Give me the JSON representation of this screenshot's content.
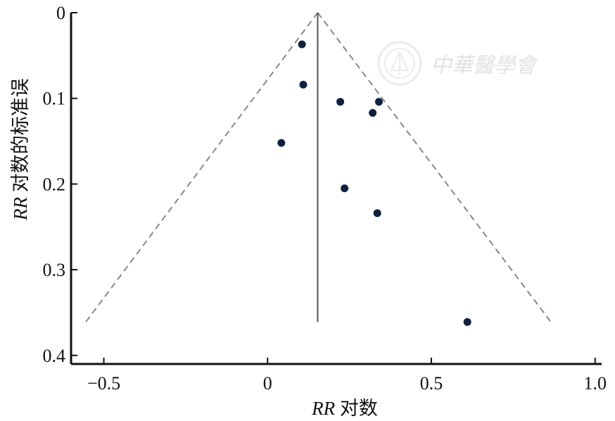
{
  "chart_data": {
    "type": "scatter",
    "chart_kind": "funnel plot",
    "xlabel": {
      "italic": "RR",
      "rest": " 对数"
    },
    "ylabel": {
      "italic": "RR",
      "rest": " 对数的标准误"
    },
    "xlim": [
      -0.6,
      1.02
    ],
    "ylim": [
      0.41,
      0.0
    ],
    "y_reversed": true,
    "x_ticks": [
      {
        "value": -0.5,
        "label": "−0.5"
      },
      {
        "value": 0,
        "label": "0"
      },
      {
        "value": 0.5,
        "label": "0.5"
      },
      {
        "value": 1.0,
        "label": "1.0"
      }
    ],
    "y_ticks": [
      {
        "value": 0,
        "label": "0"
      },
      {
        "value": 0.1,
        "label": "0.1"
      },
      {
        "value": 0.2,
        "label": "0.2"
      },
      {
        "value": 0.3,
        "label": "0.3"
      },
      {
        "value": 0.4,
        "label": "0.4"
      }
    ],
    "points": [
      {
        "x": 0.105,
        "y": 0.037
      },
      {
        "x": 0.109,
        "y": 0.084
      },
      {
        "x": 0.222,
        "y": 0.104
      },
      {
        "x": 0.34,
        "y": 0.104
      },
      {
        "x": 0.321,
        "y": 0.117
      },
      {
        "x": 0.042,
        "y": 0.152
      },
      {
        "x": 0.235,
        "y": 0.205
      },
      {
        "x": 0.335,
        "y": 0.234
      },
      {
        "x": 0.61,
        "y": 0.361
      }
    ],
    "pooled_estimate_x": 0.153,
    "funnel": {
      "apex_y": 0.0,
      "base_y": 0.361,
      "left_x": -0.555,
      "right_x": 0.865
    },
    "grid": false,
    "legend": "none",
    "colors": {
      "points": "#0d2240",
      "funnel": "#888888",
      "center_line": "#555555",
      "axes": "#111111"
    }
  },
  "watermark": {
    "text": "中華醫學會",
    "icon": "society-seal-icon"
  }
}
